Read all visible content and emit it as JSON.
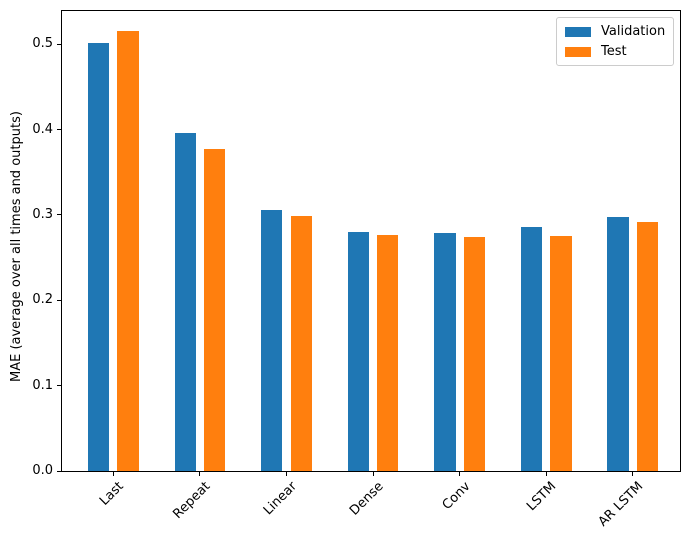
{
  "chart_data": {
    "type": "bar",
    "title": "",
    "xlabel": "",
    "ylabel": "MAE (average over all times and outputs)",
    "categories": [
      "Last",
      "Repeat",
      "Linear",
      "Dense",
      "Conv",
      "LSTM",
      "AR LSTM"
    ],
    "series": [
      {
        "name": "Validation",
        "color": "#1f77b4",
        "values": [
          0.501,
          0.396,
          0.306,
          0.28,
          0.279,
          0.286,
          0.298
        ]
      },
      {
        "name": "Test",
        "color": "#ff7f0e",
        "values": [
          0.516,
          0.377,
          0.299,
          0.277,
          0.274,
          0.276,
          0.292
        ]
      }
    ],
    "ylim": [
      0,
      0.539
    ],
    "ytick_values": [
      0.0,
      0.1,
      0.2,
      0.3,
      0.4,
      0.5
    ],
    "ytick_labels": [
      "0.0",
      "0.1",
      "0.2",
      "0.3",
      "0.4",
      "0.5"
    ],
    "xtick_rotation": 45,
    "legend_position": "upper right",
    "grid": false,
    "axis_color": "#000000",
    "background": "#ffffff"
  }
}
